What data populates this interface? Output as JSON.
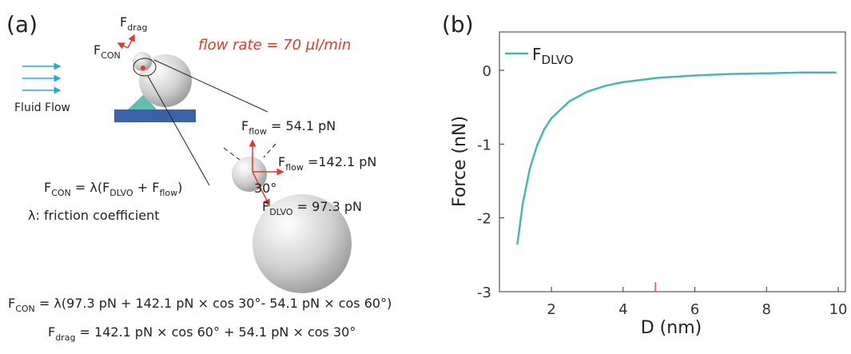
{
  "panel_a": {
    "label": "(a)",
    "fluid": "Fluid Flow",
    "flow_rate": "flow rate = 70 µl/min",
    "drag": [
      {
        "t": "F"
      },
      {
        "s": "drag"
      }
    ],
    "con": [
      {
        "t": "F"
      },
      {
        "s": "CON"
      }
    ],
    "f_flow_up": [
      {
        "t": "F"
      },
      {
        "s": "flow"
      },
      {
        "t": " = 54.1 pN"
      }
    ],
    "f_flow_right": [
      {
        "t": "F"
      },
      {
        "s": "flow"
      },
      {
        "t": " =142.1 pN"
      }
    ],
    "angle": "30°",
    "f_dlvo": [
      {
        "t": "F"
      },
      {
        "s": "DLVO"
      },
      {
        "t": " = 97.3 pN"
      }
    ],
    "con_def": [
      {
        "t": "F"
      },
      {
        "s": "CON"
      },
      {
        "t": " = λ(F"
      },
      {
        "s": "DLVO"
      },
      {
        "t": " + F"
      },
      {
        "s": "flow"
      },
      {
        "t": ")"
      }
    ],
    "lambda_def": "λ: friction coefficient",
    "eq1": [
      {
        "t": "F"
      },
      {
        "s": "CON"
      },
      {
        "t": " = λ(97.3 pN + 142.1 pN × cos 30°- 54.1 pN × cos 60°)"
      }
    ],
    "eq2": [
      {
        "t": "F"
      },
      {
        "s": "drag"
      },
      {
        "t": " = 142.1 pN × cos 60° + 54.1 pN × cos 30°"
      }
    ]
  },
  "chart_data": {
    "type": "line",
    "panel_label": "(b)",
    "x_label": "D (nm)",
    "y_label": "Force (nN)",
    "xlim": [
      0.55,
      10.2
    ],
    "ylim": [
      -3,
      0.52
    ],
    "xticks": [
      2,
      4,
      6,
      8,
      10
    ],
    "yticks": [
      0,
      -1,
      -2,
      -3
    ],
    "x": [
      1.05,
      1.2,
      1.4,
      1.6,
      1.8,
      2,
      2.5,
      3,
      3.5,
      4,
      5,
      6,
      7,
      8,
      9,
      9.95
    ],
    "series": [
      {
        "name": "F",
        "name_sub": "DLVO",
        "color": "#45b9b0",
        "values": [
          -2.36,
          -1.81,
          -1.33,
          -1.02,
          -0.8,
          -0.65,
          -0.42,
          -0.29,
          -0.21,
          -0.16,
          -0.1,
          -0.07,
          -0.05,
          -0.04,
          -0.03,
          -0.03
        ]
      }
    ],
    "marker_x": 4.9,
    "marker_color": "#e0603a",
    "legend": "upper left"
  }
}
